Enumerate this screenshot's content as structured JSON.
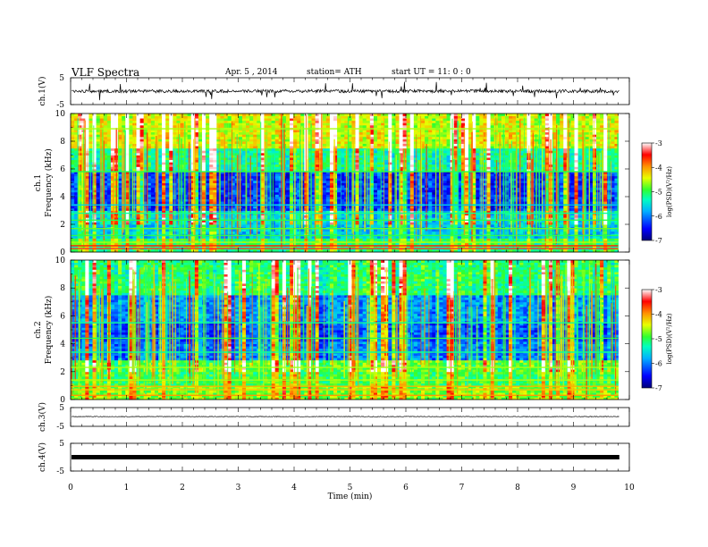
{
  "header": {
    "title": "VLF  Spectra",
    "date": "Apr. 5  , 2014",
    "station": "station= ATH",
    "start": "start  UT  =    11: 0   : 0"
  },
  "chart_data": [
    {
      "type": "line",
      "panel": "ch1-waveform",
      "ylabel": "ch.1(V)",
      "ylim": [
        -5,
        5
      ],
      "yticks": [
        "5",
        "-5"
      ],
      "xlim": [
        0,
        10
      ],
      "series": [
        {
          "baseline": 0,
          "noise_amplitude": 0.6,
          "spike_amplitude": 2.5,
          "color": "#000000"
        }
      ]
    },
    {
      "type": "heatmap",
      "panel": "ch1-spectrogram",
      "ylabel_top": "ch.1",
      "ylabel": "Frequency  (kHz)",
      "ylim": [
        0,
        10
      ],
      "yticks": [
        "0",
        "2",
        "4",
        "6",
        "8",
        "10"
      ],
      "xlim": [
        0,
        9.8
      ],
      "colorbar": {
        "label": "log(PSD)(V²/Hz)",
        "range": [
          -7,
          -3
        ],
        "ticks": [
          "-3",
          "-4",
          "-5",
          "-6",
          "-7"
        ]
      }
    },
    {
      "type": "heatmap",
      "panel": "ch2-spectrogram",
      "ylabel_top": "ch.2",
      "ylabel": "Frequency  (kHz)",
      "ylim": [
        0,
        10
      ],
      "yticks": [
        "0",
        "2",
        "4",
        "6",
        "8",
        "10"
      ],
      "xlim": [
        0,
        9.8
      ],
      "colorbar": {
        "label": "log(PSD)(V²/Hz)",
        "range": [
          -7,
          -3
        ],
        "ticks": [
          "-3",
          "-4",
          "-5",
          "-6",
          "-7"
        ]
      }
    },
    {
      "type": "line",
      "panel": "ch3-waveform",
      "ylabel": "ch.3(V)",
      "ylim": [
        -5,
        5
      ],
      "yticks": [
        "5",
        "-5"
      ],
      "series": [
        {
          "baseline": 0.2,
          "noise_amplitude": 0.15,
          "color": "#000000"
        }
      ]
    },
    {
      "type": "line",
      "panel": "ch4-waveform",
      "ylabel": "ch.4(V)",
      "ylim": [
        -5,
        5
      ],
      "yticks": [
        "5",
        "-5"
      ],
      "series": [
        {
          "baseline": 0,
          "noise_amplitude": 0.4,
          "color": "#000000"
        }
      ]
    }
  ],
  "xaxis": {
    "label": "Time  (min)",
    "range": [
      0,
      10
    ],
    "ticks": [
      "0",
      "1",
      "2",
      "3",
      "4",
      "5",
      "6",
      "7",
      "8",
      "9",
      "10"
    ]
  }
}
